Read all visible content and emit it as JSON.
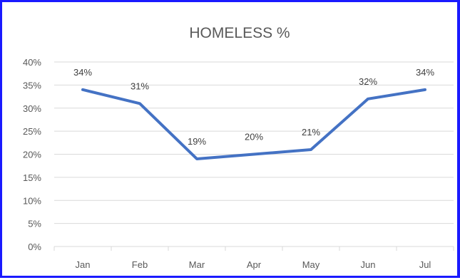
{
  "chart_data": {
    "type": "line",
    "title": "HOMELESS %",
    "categories": [
      "Jan",
      "Feb",
      "Mar",
      "Apr",
      "May",
      "Jun",
      "Jul"
    ],
    "series": [
      {
        "values": [
          34,
          31,
          19,
          20,
          21,
          32,
          34
        ],
        "data_labels": [
          "34%",
          "31%",
          "19%",
          "20%",
          "21%",
          "32%",
          "34%"
        ],
        "color": "#4472c4"
      }
    ],
    "y_ticks": [
      "0%",
      "5%",
      "10%",
      "15%",
      "20%",
      "25%",
      "30%",
      "35%",
      "40%"
    ],
    "ylim": [
      0,
      40
    ],
    "grid": true,
    "legend": "none"
  }
}
